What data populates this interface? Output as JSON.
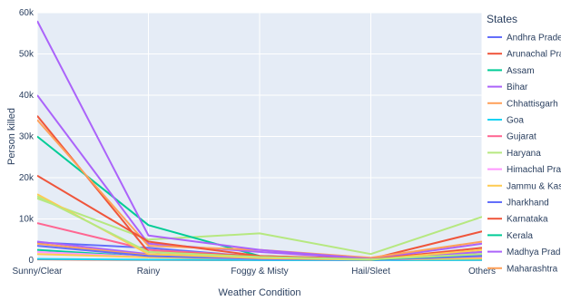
{
  "chart_data": {
    "type": "line",
    "title": "",
    "xlabel": "Weather Condition",
    "ylabel": "Person killed",
    "categories": [
      "Sunny/Clear",
      "Rainy",
      "Foggy & Misty",
      "Hail/Sleet",
      "Others"
    ],
    "ylim": [
      0,
      60000
    ],
    "yticks": [
      0,
      10000,
      20000,
      30000,
      40000,
      50000,
      60000
    ],
    "ytick_labels": [
      "0",
      "10k",
      "20k",
      "30k",
      "40k",
      "50k",
      "60k"
    ],
    "grid": true,
    "legend_title": "States",
    "legend_position": "right",
    "series": [
      {
        "name": "Andhra Pradesh",
        "color": "#636efa",
        "values": [
          4300,
          3000,
          800,
          150,
          1000
        ]
      },
      {
        "name": "Arunachal Pradesh",
        "color": "#EF553B",
        "values": [
          200,
          50,
          20,
          5,
          60
        ]
      },
      {
        "name": "Assam",
        "color": "#00cc96",
        "values": [
          2500,
          800,
          400,
          100,
          300
        ]
      },
      {
        "name": "Bihar",
        "color": "#ab63fa",
        "values": [
          4500,
          1500,
          500,
          100,
          1200
        ]
      },
      {
        "name": "Chhattisgarh",
        "color": "#FFA15A",
        "values": [
          4000,
          1200,
          300,
          80,
          800
        ]
      },
      {
        "name": "Goa",
        "color": "#19d3f3",
        "values": [
          300,
          100,
          30,
          10,
          50
        ]
      },
      {
        "name": "Gujarat",
        "color": "#FF6692",
        "values": [
          9000,
          2500,
          900,
          300,
          2000
        ]
      },
      {
        "name": "Haryana",
        "color": "#B6E880",
        "values": [
          15000,
          5000,
          6500,
          1500,
          10500
        ]
      },
      {
        "name": "Himachal Pradesh",
        "color": "#FF97FF",
        "values": [
          2000,
          800,
          300,
          100,
          500
        ]
      },
      {
        "name": "Jammu & Kashmir",
        "color": "#FECB52",
        "values": [
          1500,
          700,
          400,
          200,
          400
        ]
      },
      {
        "name": "Jharkhand",
        "color": "#636efa",
        "values": [
          3500,
          1000,
          300,
          50,
          1000
        ]
      },
      {
        "name": "Karnataka",
        "color": "#EF553B",
        "values": [
          35000,
          2000,
          1000,
          300,
          7000
        ]
      },
      {
        "name": "Kerala",
        "color": "#00cc96",
        "values": [
          30000,
          8500,
          1000,
          100,
          1500
        ]
      },
      {
        "name": "Madhya Pradesh",
        "color": "#ab63fa",
        "values": [
          40000,
          4000,
          2000,
          300,
          4000
        ]
      },
      {
        "name": "Maharashtra",
        "color": "#FFA15A",
        "values": [
          34000,
          3500,
          2500,
          600,
          4500
        ]
      },
      {
        "name": "",
        "color": "#ab63fa",
        "values": [
          58000,
          6000,
          2500,
          300,
          2000
        ]
      },
      {
        "name": "",
        "color": "#EF553B",
        "values": [
          20500,
          4500,
          1000,
          200,
          3000
        ]
      },
      {
        "name": "",
        "color": "#FECB52",
        "values": [
          16000,
          1500,
          500,
          100,
          2500
        ]
      },
      {
        "name": "",
        "color": "#B6E880",
        "values": [
          15500,
          2000,
          800,
          200,
          1500
        ]
      }
    ]
  }
}
